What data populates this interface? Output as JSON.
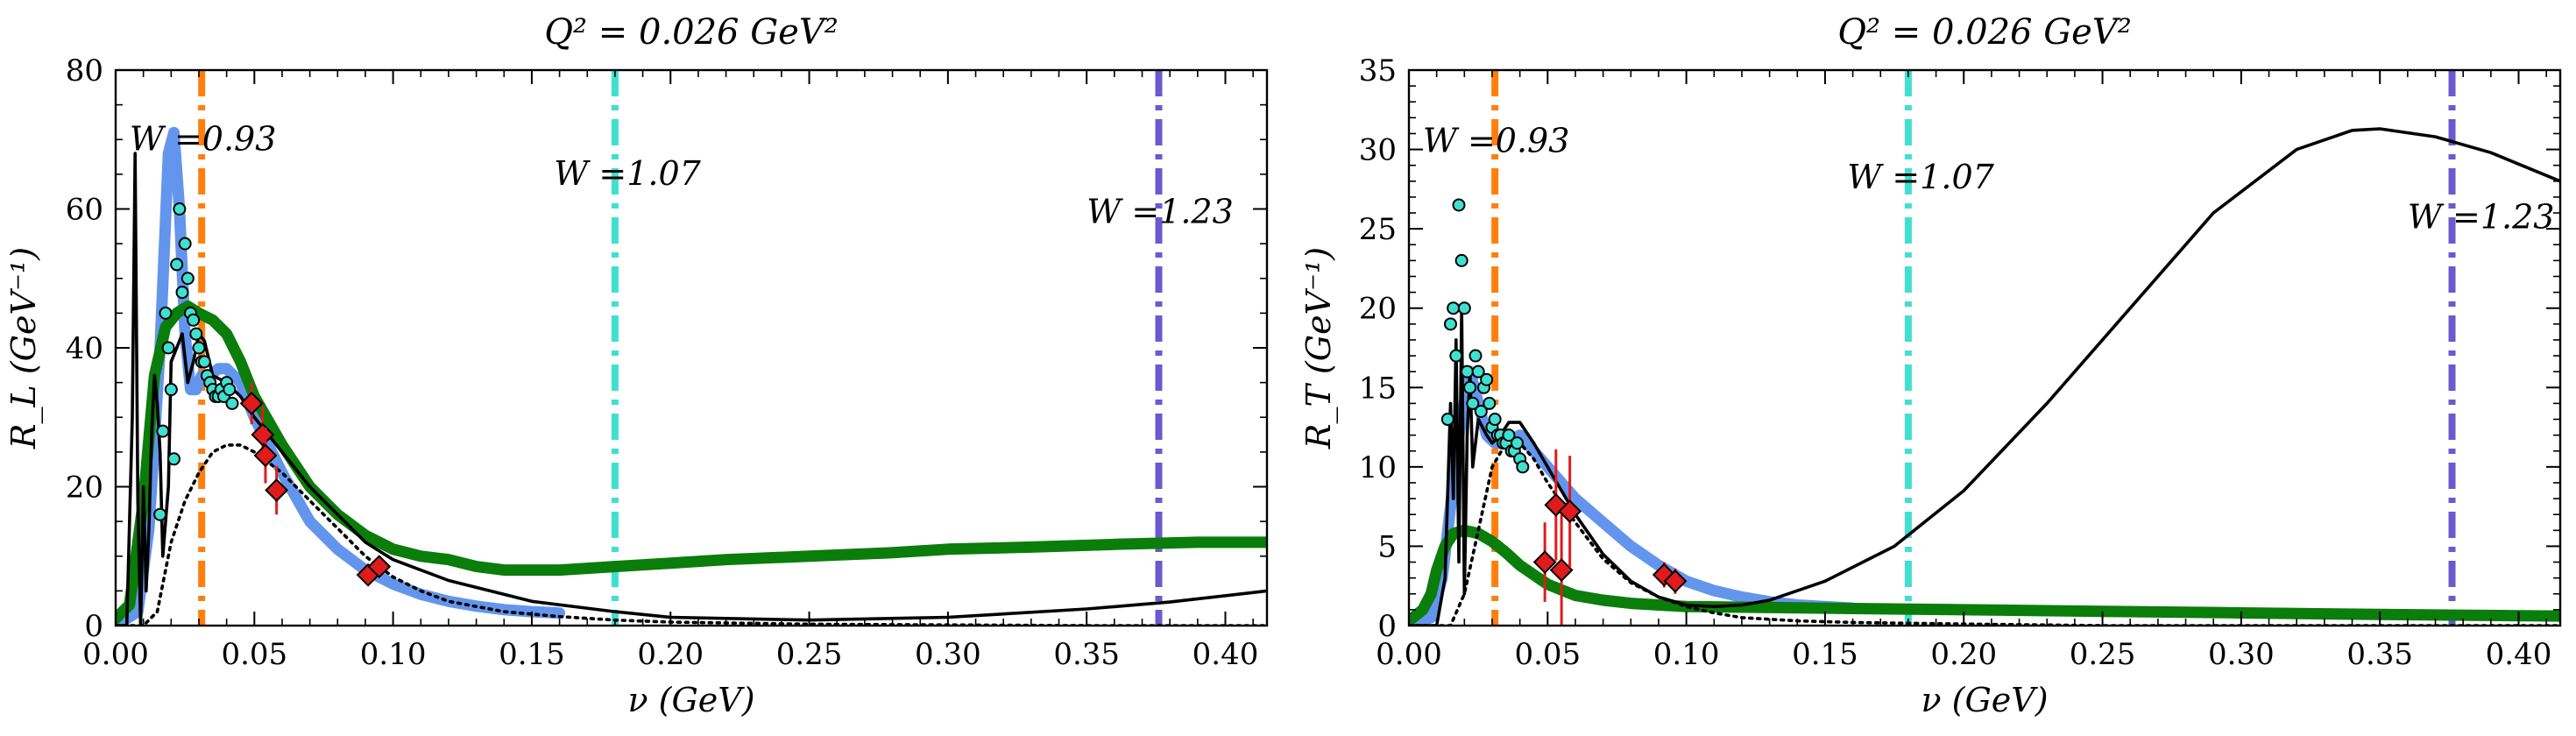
{
  "chart_data": [
    {
      "type": "line",
      "title": "Q² = 0.026 GeV²",
      "xlabel": "ν (GeV)",
      "ylabel": "R_L (GeV⁻¹)",
      "xlim": [
        0.0,
        0.415
      ],
      "ylim": [
        0,
        80
      ],
      "x_ticks": [
        "0.00",
        "0.05",
        "0.10",
        "0.15",
        "0.20",
        "0.25",
        "0.30",
        "0.35",
        "0.40"
      ],
      "y_ticks": [
        "0",
        "20",
        "40",
        "60",
        "80"
      ],
      "grid": false,
      "legend": "none",
      "vlines": [
        {
          "x": 0.031,
          "color": "#ff7f0e",
          "label": "W =0.93",
          "label_pos": [
            0.005,
            70
          ]
        },
        {
          "x": 0.18,
          "color": "#40e0d0",
          "label": "W =1.07",
          "label_pos": [
            0.158,
            65
          ]
        },
        {
          "x": 0.376,
          "color": "#6a5acd",
          "label": "W =1.23",
          "label_pos": [
            0.35,
            59.5
          ]
        }
      ],
      "series": [
        {
          "style": "blue-thick",
          "color": "#6495ed",
          "x": [
            0.0,
            0.008,
            0.012,
            0.016,
            0.019,
            0.021,
            0.023,
            0.025,
            0.027,
            0.029,
            0.031,
            0.034,
            0.037,
            0.04,
            0.045,
            0.05,
            0.06,
            0.07,
            0.08,
            0.09,
            0.1,
            0.11,
            0.12,
            0.13,
            0.14,
            0.15,
            0.16
          ],
          "y": [
            0,
            2,
            14,
            40,
            68,
            71,
            60,
            42,
            34,
            34,
            36,
            36,
            37,
            37,
            35,
            30,
            22,
            15,
            11,
            8,
            6,
            4.5,
            3.5,
            2.8,
            2.3,
            2,
            1.8
          ]
        },
        {
          "style": "green-thick",
          "color": "#0a7d0a",
          "x": [
            0.0,
            0.005,
            0.01,
            0.014,
            0.018,
            0.022,
            0.026,
            0.03,
            0.035,
            0.04,
            0.045,
            0.05,
            0.06,
            0.07,
            0.08,
            0.09,
            0.1,
            0.11,
            0.12,
            0.13,
            0.14,
            0.15,
            0.16,
            0.18,
            0.2,
            0.22,
            0.25,
            0.28,
            0.3,
            0.33,
            0.36,
            0.39,
            0.415
          ],
          "y": [
            1,
            3,
            18,
            36,
            43,
            45,
            46,
            45,
            44,
            42,
            38,
            33,
            26,
            20,
            16,
            13,
            11,
            10,
            9.5,
            8.5,
            8,
            8,
            8,
            8.5,
            9,
            9.5,
            10,
            10.5,
            11,
            11.3,
            11.7,
            12,
            12
          ]
        },
        {
          "style": "black-solid",
          "color": "#000000",
          "x": [
            0.0,
            0.004,
            0.006,
            0.007,
            0.008,
            0.009,
            0.01,
            0.011,
            0.012,
            0.013,
            0.014,
            0.015,
            0.016,
            0.017,
            0.018,
            0.019,
            0.02,
            0.022,
            0.024,
            0.026,
            0.028,
            0.03,
            0.032,
            0.035,
            0.04,
            0.045,
            0.05,
            0.06,
            0.07,
            0.08,
            0.09,
            0.1,
            0.12,
            0.15,
            0.18,
            0.2,
            0.25,
            0.3,
            0.35,
            0.38,
            0.415
          ],
          "y": [
            0,
            0,
            30,
            68,
            18,
            0,
            20,
            5,
            14,
            28,
            36,
            32,
            25,
            10,
            15,
            20,
            38,
            40,
            42,
            35,
            38,
            42,
            41,
            36,
            35,
            33,
            30,
            25,
            20,
            16,
            12,
            9.5,
            6.5,
            3.5,
            2,
            1.2,
            0.8,
            1.2,
            2.4,
            3.4,
            5
          ]
        },
        {
          "style": "black-dotted",
          "color": "#000000",
          "x": [
            0.0,
            0.01,
            0.015,
            0.02,
            0.025,
            0.03,
            0.035,
            0.04,
            0.045,
            0.05,
            0.06,
            0.07,
            0.08,
            0.09,
            0.1,
            0.11,
            0.12,
            0.14,
            0.16,
            0.18,
            0.2,
            0.25,
            0.3,
            0.35,
            0.415
          ],
          "y": [
            0,
            0,
            2,
            12,
            18,
            22,
            25,
            26,
            26,
            25,
            22,
            18,
            14,
            10,
            7,
            5,
            3.5,
            2,
            1.3,
            0.8,
            0.5,
            0.2,
            0.1,
            0,
            0
          ]
        },
        {
          "style": "cyan-points",
          "color": "#40e0d0",
          "x": [
            0.016,
            0.017,
            0.018,
            0.019,
            0.02,
            0.021,
            0.022,
            0.023,
            0.024,
            0.025,
            0.026,
            0.027,
            0.028,
            0.029,
            0.03,
            0.031,
            0.032,
            0.033,
            0.034,
            0.035,
            0.036,
            0.037,
            0.038,
            0.039,
            0.04,
            0.041,
            0.042
          ],
          "y": [
            16,
            28,
            45,
            40,
            34,
            24,
            52,
            60,
            48,
            55,
            50,
            45,
            44,
            42,
            40,
            38,
            38,
            36,
            35,
            34,
            33,
            33,
            34,
            33,
            35,
            34,
            32
          ]
        },
        {
          "style": "red-diamonds",
          "color": "#e01b1b",
          "x": [
            0.049,
            0.053,
            0.054,
            0.058,
            0.091,
            0.095
          ],
          "y": [
            32,
            27.5,
            24.5,
            19.5,
            7.3,
            8.5
          ],
          "err": [
            3,
            4,
            4,
            3.5,
            1,
            1
          ]
        }
      ]
    },
    {
      "type": "line",
      "title": "Q² = 0.026 GeV²",
      "xlabel": "ν (GeV)",
      "ylabel": "R_T (GeV⁻¹)",
      "xlim": [
        0.0,
        0.415
      ],
      "ylim": [
        0,
        35
      ],
      "x_ticks": [
        "0.00",
        "0.05",
        "0.10",
        "0.15",
        "0.20",
        "0.25",
        "0.30",
        "0.35",
        "0.40"
      ],
      "y_ticks": [
        "0",
        "5",
        "10",
        "15",
        "20",
        "25",
        "30",
        "35"
      ],
      "grid": false,
      "legend": "none",
      "vlines": [
        {
          "x": 0.031,
          "color": "#ff7f0e",
          "label": "W =0.93",
          "label_pos": [
            0.005,
            30.5
          ]
        },
        {
          "x": 0.18,
          "color": "#40e0d0",
          "label": "W =1.07",
          "label_pos": [
            0.158,
            28.2
          ]
        },
        {
          "x": 0.376,
          "color": "#6a5acd",
          "label": "W =1.23",
          "label_pos": [
            0.36,
            25.7
          ]
        }
      ],
      "series": [
        {
          "style": "blue-thick",
          "color": "#6495ed",
          "x": [
            0.0,
            0.008,
            0.012,
            0.016,
            0.018,
            0.02,
            0.022,
            0.025,
            0.028,
            0.031,
            0.035,
            0.04,
            0.045,
            0.05,
            0.06,
            0.07,
            0.08,
            0.09,
            0.1,
            0.11,
            0.12,
            0.13,
            0.14,
            0.15,
            0.16
          ],
          "y": [
            0,
            0.5,
            3,
            9,
            12,
            14,
            16,
            14,
            12,
            11.5,
            11.5,
            12,
            11,
            10,
            8,
            6.5,
            5,
            3.8,
            2.8,
            2.2,
            1.8,
            1.5,
            1.3,
            1.2,
            1.1
          ]
        },
        {
          "style": "green-thick",
          "color": "#0a7d0a",
          "x": [
            0.0,
            0.005,
            0.008,
            0.01,
            0.013,
            0.016,
            0.02,
            0.025,
            0.03,
            0.035,
            0.04,
            0.05,
            0.06,
            0.07,
            0.08,
            0.1,
            0.15,
            0.2,
            0.25,
            0.3,
            0.35,
            0.415
          ],
          "y": [
            0.3,
            1,
            2,
            3.5,
            5,
            5.8,
            6,
            5.8,
            5.3,
            4.6,
            3.8,
            2.6,
            1.9,
            1.6,
            1.4,
            1.2,
            1.1,
            1,
            0.9,
            0.8,
            0.7,
            0.6
          ]
        },
        {
          "style": "black-solid",
          "color": "#000000",
          "x": [
            0.0,
            0.01,
            0.013,
            0.015,
            0.016,
            0.017,
            0.018,
            0.019,
            0.02,
            0.021,
            0.022,
            0.023,
            0.025,
            0.028,
            0.03,
            0.033,
            0.036,
            0.04,
            0.045,
            0.05,
            0.06,
            0.07,
            0.08,
            0.09,
            0.1,
            0.11,
            0.12,
            0.13,
            0.15,
            0.175,
            0.2,
            0.23,
            0.26,
            0.29,
            0.32,
            0.34,
            0.35,
            0.37,
            0.39,
            0.415
          ],
          "y": [
            0,
            0,
            3,
            14,
            8,
            18,
            4,
            20,
            2,
            12,
            16,
            10,
            13,
            12,
            11.5,
            12,
            12.8,
            12.8,
            11.5,
            10,
            7,
            4.5,
            2.8,
            1.8,
            1.3,
            1.2,
            1.3,
            1.6,
            2.8,
            5,
            8.5,
            14,
            20,
            26,
            30,
            31.2,
            31.3,
            30.8,
            29.8,
            28
          ]
        },
        {
          "style": "black-dotted",
          "color": "#000000",
          "x": [
            0.0,
            0.015,
            0.02,
            0.025,
            0.03,
            0.035,
            0.04,
            0.045,
            0.05,
            0.06,
            0.07,
            0.08,
            0.09,
            0.1,
            0.11,
            0.12,
            0.14,
            0.16,
            0.2,
            0.25,
            0.3,
            0.415
          ],
          "y": [
            0,
            0,
            2,
            6,
            10,
            11.5,
            11.5,
            10.5,
            9,
            6.5,
            4.2,
            2.7,
            1.8,
            1.2,
            0.8,
            0.5,
            0.3,
            0.2,
            0.1,
            0,
            0,
            0
          ]
        },
        {
          "style": "cyan-points",
          "color": "#40e0d0",
          "x": [
            0.014,
            0.015,
            0.016,
            0.017,
            0.018,
            0.019,
            0.02,
            0.021,
            0.022,
            0.023,
            0.024,
            0.025,
            0.026,
            0.027,
            0.028,
            0.029,
            0.03,
            0.031,
            0.032,
            0.033,
            0.034,
            0.035,
            0.036,
            0.037,
            0.038,
            0.039,
            0.04,
            0.041
          ],
          "y": [
            13,
            19,
            20,
            17,
            26.5,
            23,
            20,
            16,
            15,
            14,
            17,
            16,
            13.5,
            15,
            15.5,
            14,
            12.5,
            13,
            12,
            12,
            11.5,
            11.5,
            12,
            11,
            11,
            11.5,
            10.5,
            10
          ]
        },
        {
          "style": "red-diamonds",
          "color": "#e01b1b",
          "x": [
            0.049,
            0.053,
            0.055,
            0.058,
            0.092,
            0.096
          ],
          "y": [
            4,
            7.6,
            3.5,
            7.2,
            3.2,
            2.8
          ],
          "err": [
            2.5,
            3.5,
            3.5,
            3.5,
            0.8,
            0.8
          ]
        }
      ]
    }
  ]
}
